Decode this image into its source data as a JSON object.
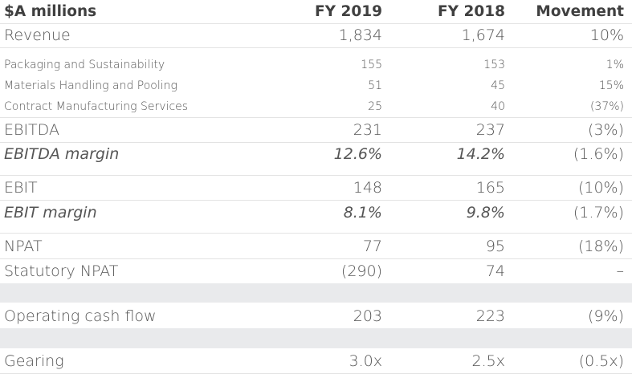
{
  "table": {
    "header": {
      "label": "$A millions",
      "col1": "FY 2019",
      "col2": "FY 2018",
      "col3": "Movement"
    },
    "revenue": {
      "label": "Revenue",
      "fy2019": "1,834",
      "fy2018": "1,674",
      "movement": "10%"
    },
    "segments": [
      {
        "label": "Packaging and Sustainability",
        "fy2019": "155",
        "fy2018": "153",
        "movement": "1%"
      },
      {
        "label": "Materials Handling and Pooling",
        "fy2019": "51",
        "fy2018": "45",
        "movement": "15%"
      },
      {
        "label": "Contract Manufacturing Services",
        "fy2019": "25",
        "fy2018": "40",
        "movement": "(37%)"
      }
    ],
    "ebitda": {
      "label": "EBITDA",
      "fy2019": "231",
      "fy2018": "237",
      "movement": "(3%)"
    },
    "ebitda_margin": {
      "label": "EBITDA margin",
      "fy2019": "12.6%",
      "fy2018": "14.2%",
      "movement": "(1.6%)"
    },
    "ebit": {
      "label": "EBIT",
      "fy2019": "148",
      "fy2018": "165",
      "movement": "(10%)"
    },
    "ebit_margin": {
      "label": "EBIT margin",
      "fy2019": "8.1%",
      "fy2018": "9.8%",
      "movement": "(1.7%)"
    },
    "npat": {
      "label": "NPAT",
      "fy2019": "77",
      "fy2018": "95",
      "movement": "(18%)"
    },
    "statutory_npat": {
      "label": "Statutory NPAT",
      "fy2019": "(290)",
      "fy2018": "74",
      "movement": "–"
    },
    "operating_cash_flow": {
      "label": "Operating cash flow",
      "fy2019": "203",
      "fy2018": "223",
      "movement": "(9%)"
    },
    "gearing": {
      "label": "Gearing",
      "fy2019": "3.0x",
      "fy2018": "2.5x",
      "movement": "(0.5x)"
    }
  }
}
